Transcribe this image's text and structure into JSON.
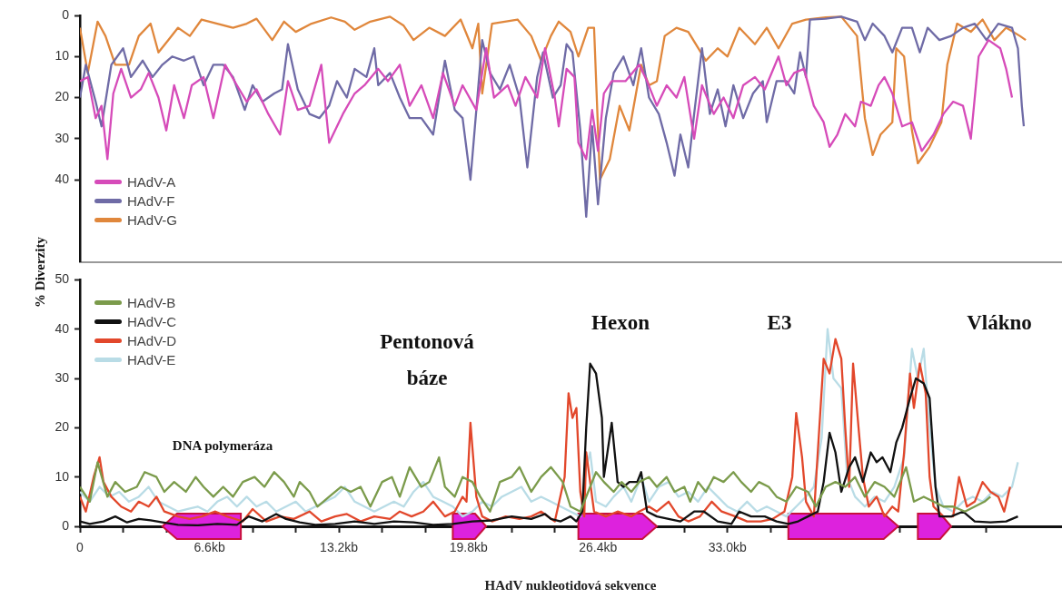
{
  "chart_data": [
    {
      "type": "line",
      "xlim": [
        0,
        50
      ],
      "ylim": [
        60,
        0
      ],
      "yticks": [
        0,
        10,
        20,
        30,
        40
      ],
      "tick_labels": "y",
      "grid": false,
      "legend": "bottom left",
      "series": [
        {
          "name": "HAdV-A",
          "color": "#d64bb9",
          "x": [
            0,
            0.4,
            0.8,
            1.1,
            1.4,
            1.7,
            2.1,
            2.6,
            3.1,
            3.5,
            4.0,
            4.4,
            4.8,
            5.3,
            5.7,
            6.3,
            6.8,
            7.4,
            8.0,
            8.5,
            9.0,
            9.6,
            10.2,
            10.6,
            11.1,
            11.7,
            12.3,
            12.7,
            13.4,
            14.0,
            14.5,
            15.2,
            15.7,
            16.3,
            16.8,
            17.4,
            18.0,
            18.5,
            19.1,
            19.5,
            20.2,
            20.7,
            21.1,
            21.8,
            22.2,
            22.7,
            23.3,
            23.7,
            24.2,
            24.4,
            24.8,
            25.2,
            25.4,
            25.8,
            26.1,
            26.4,
            26.7,
            27.1,
            27.8,
            28.5,
            28.9,
            29.4,
            29.9,
            30.4,
            30.8,
            31.3,
            31.7,
            32.3,
            32.8,
            33.3,
            33.8,
            34.4,
            34.9,
            35.6,
            36.0,
            36.4,
            36.9,
            37.4,
            37.9,
            38.2,
            38.6,
            39.0,
            39.5,
            39.8,
            40.3,
            40.7,
            41.0,
            41.4,
            41.9,
            42.4,
            42.9,
            43.5,
            44.0,
            44.5,
            45.0,
            45.4,
            45.8,
            46.3,
            46.9,
            47.2,
            47.5
          ],
          "values": [
            16,
            15,
            25,
            22,
            35,
            19,
            13,
            20,
            18,
            14,
            20,
            28,
            17,
            25,
            17,
            15,
            25,
            12,
            17,
            21,
            18,
            24,
            29,
            16,
            23,
            22,
            12,
            31,
            24,
            19,
            17,
            13,
            16,
            12,
            22,
            17,
            25,
            14,
            22,
            17,
            23,
            8,
            20,
            17,
            22,
            15,
            20,
            8,
            20,
            27,
            13,
            15,
            31,
            35,
            23,
            33,
            19,
            16,
            16,
            12,
            16,
            22,
            17,
            20,
            15,
            30,
            17,
            24,
            20,
            25,
            17,
            15,
            18,
            10,
            17,
            14,
            13,
            22,
            26,
            32,
            29,
            24,
            27,
            21,
            22,
            17,
            15,
            19,
            27,
            26,
            33,
            29,
            24,
            21,
            22,
            30,
            10,
            6,
            8,
            13,
            20
          ]
        },
        {
          "name": "HAdV-F",
          "color": "#6f6ba6",
          "x": [
            0,
            0.3,
            0.8,
            1.1,
            1.6,
            2.2,
            2.6,
            3.2,
            3.7,
            4.2,
            4.7,
            5.3,
            5.8,
            6.3,
            6.8,
            7.3,
            7.8,
            8.4,
            8.8,
            9.3,
            9.9,
            10.3,
            10.6,
            11.1,
            11.7,
            12.2,
            12.7,
            13.1,
            13.6,
            14.0,
            14.6,
            15.0,
            15.2,
            15.8,
            16.3,
            16.8,
            17.4,
            18.0,
            18.6,
            19.1,
            19.5,
            19.9,
            20.2,
            20.5,
            20.9,
            21.4,
            21.9,
            22.4,
            22.8,
            23.3,
            23.6,
            24.1,
            24.5,
            24.8,
            25.1,
            25.5,
            25.8,
            26.1,
            26.4,
            26.8,
            27.2,
            27.7,
            28.2,
            28.6,
            29.0,
            29.5,
            29.9,
            30.3,
            30.6,
            31.0,
            31.3,
            31.7,
            32.1,
            32.5,
            32.9,
            33.3,
            33.8,
            34.3,
            34.8,
            35.0,
            35.5,
            36.0,
            36.4,
            36.7,
            37.0,
            37.2,
            38.0,
            38.8,
            39.6,
            40.0,
            40.4,
            41.0,
            41.4,
            41.9,
            42.4,
            42.8,
            43.2,
            43.8,
            44.4,
            45.0,
            45.6,
            46.2,
            46.8,
            47.5,
            47.8,
            48.0,
            48.1
          ],
          "values": [
            20,
            12,
            21,
            27,
            12,
            8,
            15,
            11,
            15,
            12,
            10,
            11,
            10,
            17,
            12,
            12,
            15,
            23,
            17,
            21,
            19,
            18,
            7,
            18,
            24,
            25,
            22,
            16,
            20,
            13,
            15,
            8,
            17,
            14,
            20,
            25,
            25,
            29,
            11,
            23,
            25,
            40,
            23,
            6,
            14,
            18,
            12,
            20,
            37,
            15,
            9,
            20,
            17,
            7,
            9,
            28,
            49,
            27,
            46,
            25,
            14,
            10,
            17,
            8,
            20,
            24,
            31,
            39,
            29,
            37,
            24,
            8,
            24,
            18,
            27,
            17,
            25,
            19,
            16,
            26,
            16,
            16,
            19,
            9,
            15,
            1,
            0.8,
            0.3,
            1.5,
            6,
            2,
            5,
            9,
            3,
            3,
            9,
            3,
            6,
            5,
            3,
            2,
            6,
            2,
            3,
            8,
            22,
            27
          ]
        },
        {
          "name": "HAdV-G",
          "color": "#e0873c",
          "x": [
            0,
            0.4,
            0.9,
            1.3,
            1.8,
            2.5,
            3.0,
            3.6,
            4.0,
            4.5,
            5.0,
            5.6,
            6.2,
            7.0,
            7.8,
            8.5,
            9.0,
            9.8,
            10.4,
            11.0,
            11.8,
            12.8,
            13.5,
            14.0,
            14.8,
            15.8,
            16.5,
            17.0,
            17.8,
            18.6,
            19.4,
            20.0,
            20.3,
            20.5,
            21.0,
            22.3,
            23.0,
            23.5,
            24.0,
            24.4,
            25.0,
            25.4,
            25.9,
            26.2,
            26.5,
            27.0,
            27.5,
            28.0,
            28.6,
            29.0,
            29.4,
            29.8,
            30.4,
            31.0,
            31.9,
            32.5,
            33.0,
            33.6,
            34.4,
            35.0,
            35.6,
            36.3,
            37.0,
            38.0,
            38.8,
            39.6,
            40.0,
            40.4,
            40.8,
            41.4,
            41.6,
            42.0,
            42.4,
            42.7,
            43.3,
            43.9,
            44.2,
            44.7,
            45.4,
            46.0,
            46.6,
            47.2,
            47.9,
            48.2
          ],
          "values": [
            3,
            14,
            1.5,
            5,
            12,
            12,
            5,
            2,
            9,
            6,
            3,
            5,
            1,
            2,
            3,
            2,
            0.8,
            6,
            1.5,
            4,
            2,
            0.5,
            1.5,
            3.5,
            1.5,
            0.3,
            2.5,
            6,
            3,
            5,
            1,
            8,
            2,
            19,
            2,
            1,
            5,
            11,
            5,
            1.5,
            4,
            10,
            3,
            3,
            40,
            35,
            22,
            28,
            12,
            17,
            16,
            5,
            3,
            4,
            11,
            8,
            10,
            3,
            7,
            3,
            8,
            2,
            1,
            0.5,
            0.3,
            5,
            25,
            34,
            29,
            26,
            8,
            10,
            28,
            36,
            32,
            26,
            12,
            2,
            4,
            1,
            6,
            3,
            5,
            6
          ]
        }
      ]
    },
    {
      "type": "line",
      "xlim": [
        0,
        50
      ],
      "ylim": [
        0,
        50
      ],
      "yticks": [
        0,
        10,
        20,
        30,
        40,
        50
      ],
      "xlabel": "HAdV nukleotidová sekvence",
      "ylabel": "% Diverzity",
      "grid": false,
      "legend": "top left",
      "xticks": [
        0,
        {
          "value": 2.2,
          "label": null
        },
        {
          "value": 4.4,
          "label": null
        },
        {
          "value": 6.6,
          "label": "6.6kb"
        },
        {
          "value": 8.8,
          "label": null
        },
        {
          "value": 11,
          "label": null
        },
        {
          "value": 13.2,
          "label": "13.2kb"
        },
        {
          "value": 15.4,
          "label": null
        },
        {
          "value": 17.6,
          "label": null
        },
        {
          "value": 19.8,
          "label": "19.8kb"
        },
        {
          "value": 22,
          "label": null
        },
        {
          "value": 24.2,
          "label": null
        },
        {
          "value": 26.4,
          "label": "26.4kb"
        },
        {
          "value": 28.6,
          "label": null
        },
        {
          "value": 30.8,
          "label": null
        },
        {
          "value": 33,
          "label": "33.0kb"
        },
        {
          "value": 35.2,
          "label": null
        },
        {
          "value": 37.4,
          "label": null
        },
        {
          "value": 39.6,
          "label": null
        },
        {
          "value": 41.8,
          "label": null
        },
        {
          "value": 44,
          "label": null
        },
        {
          "value": 46.2,
          "label": null
        }
      ],
      "bands": [
        {
          "axis": "x",
          "from": 8.2,
          "to": 4.2,
          "color": "#dd22dd"
        },
        {
          "axis": "x",
          "from": 19.0,
          "to": 20.7,
          "color": "#dd22dd"
        },
        {
          "axis": "x",
          "from": 25.4,
          "to": 29.4,
          "color": "#dd22dd"
        },
        {
          "axis": "x",
          "from": 36.1,
          "to": 41.7,
          "color": "#dd22dd"
        },
        {
          "axis": "x",
          "from": 42.7,
          "to": 44.4,
          "color": "#dd22dd"
        }
      ],
      "annotations": [
        "DNA polymeráza",
        "Pentonová\nbáze",
        "Hexon",
        "E3",
        "Vlákno"
      ],
      "series": [
        {
          "name": "HAdV-B",
          "color": "#7b9b4b",
          "x": [
            0,
            0.5,
            0.9,
            1.4,
            1.8,
            2.3,
            2.9,
            3.3,
            3.9,
            4.3,
            4.8,
            5.4,
            5.9,
            6.3,
            6.8,
            7.3,
            7.8,
            8.3,
            8.9,
            9.4,
            9.9,
            10.4,
            10.9,
            11.2,
            11.7,
            12.1,
            12.7,
            13.3,
            13.8,
            14.3,
            14.8,
            15.4,
            15.9,
            16.3,
            16.8,
            17.4,
            17.8,
            18.3,
            18.6,
            19.1,
            19.5,
            20.0,
            20.4,
            20.9,
            21.4,
            22.0,
            22.4,
            23.0,
            23.5,
            24.0,
            24.6,
            25.0,
            25.5,
            26.3,
            26.7,
            27.2,
            27.6,
            28.1,
            28.5,
            29.0,
            29.4,
            29.9,
            30.3,
            30.8,
            31.1,
            31.5,
            31.9,
            32.3,
            32.8,
            33.3,
            33.7,
            34.2,
            34.6,
            35.1,
            35.5,
            36.0,
            36.5,
            37.1,
            37.5,
            38.0,
            38.5,
            39.0,
            39.5,
            40.0,
            40.5,
            41.0,
            41.5,
            42.1,
            42.5,
            43.0,
            43.5,
            44.0,
            44.5,
            45.1,
            45.6,
            46.1,
            46.4
          ],
          "values": [
            8,
            5,
            13,
            6,
            9,
            7,
            8,
            11,
            10,
            7,
            9,
            7,
            10,
            8,
            6,
            8,
            6,
            9,
            10,
            8,
            11,
            9,
            6,
            9,
            7,
            4,
            6,
            8,
            7,
            8,
            4,
            9,
            10,
            6,
            12,
            8,
            9,
            14,
            8,
            6,
            10,
            9,
            6,
            3,
            9,
            10,
            12,
            7,
            10,
            12,
            9,
            4,
            3,
            11,
            9,
            7,
            9,
            7,
            9,
            10,
            8,
            10,
            7,
            8,
            5,
            9,
            7,
            10,
            9,
            11,
            9,
            7,
            9,
            8,
            6,
            5,
            8,
            7,
            4,
            8,
            9,
            8,
            10,
            6,
            9,
            8,
            6,
            12,
            5,
            6,
            5,
            4,
            4,
            3,
            4,
            5,
            6
          ]
        },
        {
          "name": "HAdV-C",
          "color": "#111111",
          "x": [
            0,
            0.5,
            1.2,
            1.8,
            2.4,
            3.0,
            3.6,
            4.2,
            5.0,
            6.0,
            7.0,
            8.0,
            8.6,
            9.3,
            10.0,
            10.5,
            11.2,
            12.0,
            13.0,
            14.0,
            15.0,
            16.0,
            17.0,
            18.0,
            19.0,
            20.0,
            21.0,
            22.0,
            23.0,
            23.7,
            24.0,
            24.5,
            25.0,
            25.3,
            25.6,
            25.8,
            26.0,
            26.3,
            26.6,
            26.7,
            27.1,
            27.4,
            27.7,
            28.0,
            28.4,
            28.6,
            28.9,
            29.4,
            30.0,
            30.6,
            31.3,
            31.8,
            32.5,
            33.2,
            33.6,
            34.2,
            34.9,
            35.5,
            36.1,
            36.6,
            37.1,
            37.6,
            37.9,
            38.2,
            38.5,
            38.8,
            39.2,
            39.5,
            39.9,
            40.3,
            40.6,
            40.9,
            41.3,
            41.6,
            41.9,
            42.3,
            42.6,
            43.0,
            43.3,
            43.6,
            43.8,
            44.4,
            45.0,
            45.6,
            46.4,
            47.2,
            47.8
          ],
          "values": [
            1,
            0.5,
            1,
            2,
            0.8,
            1.5,
            1.2,
            0.8,
            0.3,
            0.2,
            0.5,
            0.3,
            2,
            1,
            2.5,
            1.5,
            0.8,
            0.3,
            0.5,
            1,
            0.5,
            1,
            0.8,
            0.3,
            0.5,
            1,
            1.2,
            2,
            1.5,
            2.5,
            1.5,
            1,
            2,
            1,
            3,
            20,
            33,
            31,
            22,
            10,
            21,
            9,
            8,
            9,
            9,
            11,
            3,
            2,
            1.5,
            1,
            3,
            3,
            1,
            0.5,
            3,
            2,
            2,
            1,
            0.5,
            1,
            2,
            3,
            9,
            19,
            15,
            7,
            12,
            14,
            9,
            15,
            13,
            14,
            11,
            17,
            20,
            26,
            30,
            29,
            26,
            8,
            2,
            2,
            3,
            1,
            0.8,
            1,
            2
          ]
        },
        {
          "name": "HAdV-D",
          "color": "#e2472b",
          "x": [
            0,
            0.3,
            0.7,
            1.0,
            1.2,
            1.6,
            2.1,
            2.6,
            3.0,
            3.5,
            3.9,
            4.3,
            5.0,
            5.6,
            6.2,
            6.9,
            7.5,
            8.3,
            8.8,
            9.5,
            10.2,
            10.9,
            11.7,
            12.3,
            13.0,
            13.6,
            14.3,
            15.0,
            15.8,
            16.3,
            16.9,
            17.5,
            18.0,
            18.6,
            19.1,
            19.5,
            19.7,
            19.9,
            20.2,
            20.5,
            21.0,
            21.7,
            22.4,
            23.0,
            23.5,
            24.2,
            24.7,
            24.9,
            25.1,
            25.3,
            25.5,
            25.7,
            25.8,
            26.0,
            26.2,
            26.8,
            27.4,
            28.1,
            28.5,
            29.0,
            29.4,
            30.0,
            30.5,
            31.0,
            31.6,
            32.2,
            32.7,
            33.4,
            34.0,
            34.7,
            35.3,
            35.9,
            36.3,
            36.5,
            36.8,
            37.0,
            37.4,
            37.6,
            37.9,
            38.2,
            38.5,
            38.8,
            39.0,
            39.2,
            39.4,
            39.7,
            39.9,
            40.2,
            40.6,
            41.0,
            41.4,
            41.7,
            42.0,
            42.3,
            42.5,
            42.8,
            43.1,
            43.3,
            43.5,
            44.0,
            44.5,
            44.8,
            45.2,
            45.6,
            46.0,
            46.4,
            46.8,
            47.1,
            47.4
          ],
          "values": [
            6,
            3,
            10,
            14,
            9,
            6,
            4,
            3,
            5,
            4,
            6,
            3,
            2,
            1.5,
            2,
            3,
            2,
            1,
            3.5,
            1,
            2,
            1.5,
            3,
            1,
            2,
            2.5,
            1,
            2,
            1.5,
            3,
            2,
            3,
            5,
            2,
            3,
            6,
            5,
            21,
            6,
            2,
            1,
            2,
            1.5,
            2,
            3,
            1,
            10,
            27,
            22,
            24,
            7,
            2,
            15,
            9,
            3,
            2,
            3,
            2,
            3,
            4,
            3,
            5,
            2,
            1,
            2,
            5,
            3,
            2,
            1,
            1,
            1.5,
            3,
            10,
            23,
            14,
            5,
            2,
            15,
            34,
            31,
            38,
            34,
            20,
            8,
            33,
            19,
            10,
            4,
            6,
            2,
            4,
            3,
            15,
            31,
            24,
            33,
            27,
            10,
            4,
            2,
            2,
            10,
            4,
            5,
            9,
            7,
            6,
            3,
            8
          ]
        },
        {
          "name": "HAdV-E",
          "color": "#b9dce6",
          "x": [
            0,
            0.5,
            1,
            1.5,
            2,
            2.5,
            3,
            3.5,
            4,
            4.5,
            5,
            5.5,
            6,
            6.5,
            7,
            7.5,
            8,
            8.5,
            9,
            9.5,
            10,
            10.5,
            11,
            11.5,
            12,
            12.5,
            13,
            13.5,
            14,
            14.5,
            15,
            15.5,
            16,
            16.5,
            17,
            17.5,
            18,
            18.5,
            19,
            19.5,
            20,
            20.5,
            21,
            21.5,
            22,
            22.5,
            23,
            23.5,
            24,
            24.5,
            25,
            25.5,
            25.8,
            26.0,
            26.3,
            26.8,
            27.2,
            27.7,
            28.1,
            28.6,
            29.0,
            29.5,
            30.0,
            30.5,
            31.0,
            31.5,
            32.0,
            32.5,
            33.0,
            33.5,
            34.0,
            34.5,
            35.0,
            35.5,
            36.0,
            36.5,
            37.0,
            37.4,
            37.8,
            38.1,
            38.4,
            38.8,
            39.1,
            39.5,
            40.0,
            40.5,
            41.0,
            41.5,
            42.0,
            42.4,
            42.7,
            43.0,
            43.3,
            43.6,
            44.0,
            44.5,
            45.0,
            45.5,
            46.0,
            46.5,
            47.0,
            47.5,
            47.8
          ],
          "values": [
            7,
            5,
            8,
            6,
            7,
            5,
            6,
            8,
            5,
            4,
            3,
            3.5,
            4,
            3,
            5,
            6,
            4,
            6,
            4,
            5,
            3,
            4,
            5,
            3,
            4,
            5,
            6,
            8,
            5,
            4,
            3,
            4,
            5,
            4,
            7,
            9,
            6,
            5,
            4,
            2,
            3,
            5,
            4,
            6,
            7,
            8,
            5,
            6,
            5,
            4,
            3,
            2,
            12,
            15,
            5,
            4,
            6,
            8,
            5,
            10,
            5,
            8,
            9,
            6,
            7,
            5,
            8,
            6,
            4,
            3,
            5,
            3,
            4,
            3,
            2,
            4,
            6,
            8,
            18,
            40,
            30,
            28,
            10,
            6,
            4,
            6,
            5,
            8,
            14,
            36,
            30,
            36,
            20,
            8,
            4,
            3,
            5,
            6,
            5,
            7,
            6,
            8,
            13
          ]
        }
      ]
    }
  ]
}
